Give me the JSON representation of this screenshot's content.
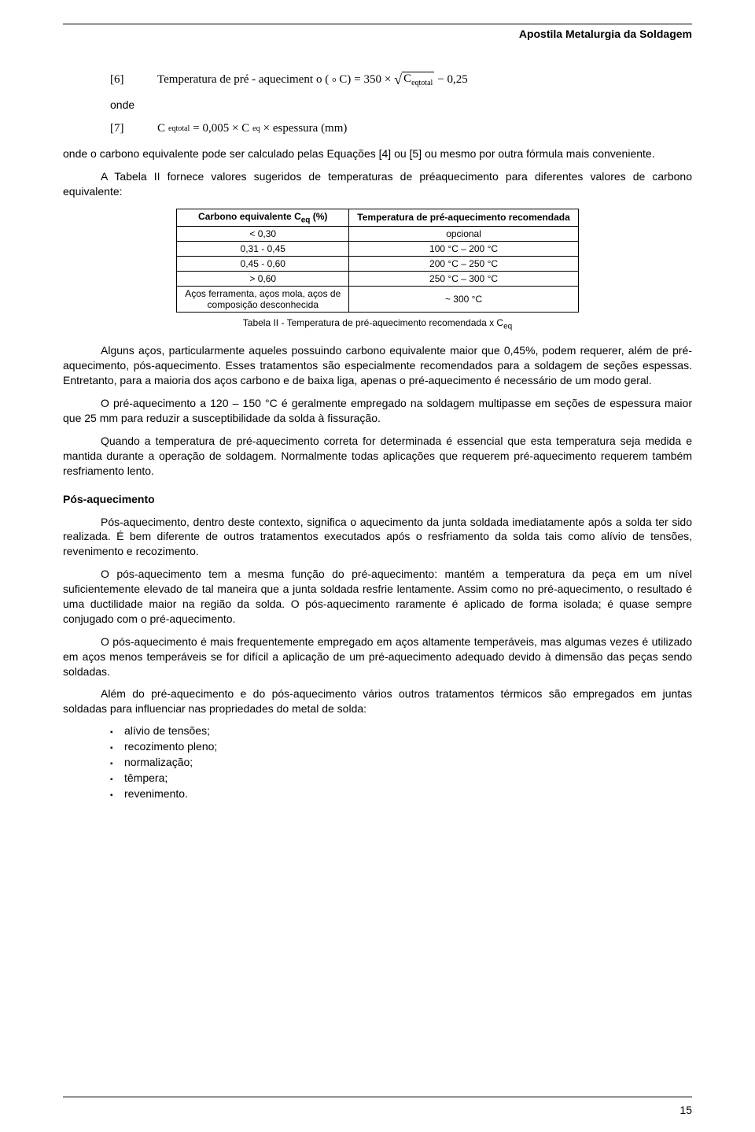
{
  "header": {
    "doc_title": "Apostila Metalurgia da Soldagem"
  },
  "formula6": {
    "tag": "[6]",
    "lhs_a": "Temperatura de pré - aqueciment",
    "lhs_b": "o (",
    "deg_sup": "o",
    "lhs_c": " C)",
    "eq": " = 350 × ",
    "sqrt_arg_a": "C",
    "sqrt_arg_sub": "eqtotal",
    "minus": " − 0,25"
  },
  "onde1": "onde",
  "formula7": {
    "tag": "[7]",
    "lhs_a": "C",
    "lhs_sub": "eqtotal",
    "eq": " = 0,005 × C",
    "eq_sub": "eq",
    "tail": " × espessura (mm)"
  },
  "p1": "onde o carbono equivalente pode ser calculado pelas Equações [4] ou [5] ou mesmo por outra fórmula mais conveniente.",
  "p2": "A Tabela II fornece valores sugeridos de temperaturas de préaquecimento para diferentes valores de carbono equivalente:",
  "table": {
    "col1_header_a": "Carbono equivalente C",
    "col1_header_sub": "eq",
    "col1_header_b": " (%)",
    "col2_header": "Temperatura de pré-aquecimento recomendada",
    "rows": [
      {
        "c1": "< 0,30",
        "c2": "opcional"
      },
      {
        "c1": "0,31 - 0,45",
        "c2": "100 °C – 200 °C"
      },
      {
        "c1": "0,45 - 0,60",
        "c2": "200 °C – 250 °C"
      },
      {
        "c1": "> 0,60",
        "c2": "250 °C – 300 °C"
      },
      {
        "c1": "Aços ferramenta, aços mola, aços de\ncomposição desconhecida",
        "c2": "~ 300 °C"
      }
    ]
  },
  "table_caption_a": "Tabela II - Temperatura de pré-aquecimento recomendada x C",
  "table_caption_sub": "eq",
  "p3": "Alguns aços, particularmente aqueles possuindo carbono equivalente maior que 0,45%, podem requerer, além de pré-aquecimento, pós-aquecimento. Esses tratamentos são especialmente recomendados para a soldagem de seções espessas. Entretanto, para a maioria dos aços carbono e de baixa liga, apenas o pré-aquecimento é necessário de um modo geral.",
  "p4": "O pré-aquecimento a 120 – 150 °C é geralmente empregado na soldagem multipasse em seções de espessura maior que 25 mm para reduzir a susceptibilidade da solda à fissuração.",
  "p5": "Quando a temperatura de pré-aquecimento correta for determinada é essencial que esta temperatura seja medida e mantida durante a operação de soldagem. Normalmente todas aplicações que requerem pré-aquecimento requerem também resfriamento lento.",
  "section_head": "Pós-aquecimento",
  "p6": "Pós-aquecimento, dentro deste contexto, significa o aquecimento da junta soldada imediatamente após a solda ter sido realizada. É bem diferente de outros tratamentos executados após o resfriamento da solda tais como alívio de tensões, revenimento e recozimento.",
  "p7": "O pós-aquecimento tem a mesma função do pré-aquecimento: mantém a temperatura da peça em um nível suficientemente elevado de tal maneira que a junta soldada resfrie lentamente. Assim como no pré-aquecimento, o resultado é uma ductilidade maior na região da solda. O pós-aquecimento raramente é aplicado de forma isolada; é quase sempre conjugado com o pré-aquecimento.",
  "p8": "O pós-aquecimento é mais frequentemente empregado em aços altamente temperáveis, mas algumas vezes é utilizado em aços menos temperáveis se for difícil a aplicação de um pré-aquecimento adequado devido à dimensão das peças sendo soldadas.",
  "p9": "Além do pré-aquecimento e do pós-aquecimento vários outros tratamentos térmicos são empregados em juntas soldadas para influenciar nas propriedades do metal de solda:",
  "bullets": [
    "alívio de tensões;",
    "recozimento pleno;",
    "normalização;",
    "têmpera;",
    "revenimento."
  ],
  "page_number": "15"
}
